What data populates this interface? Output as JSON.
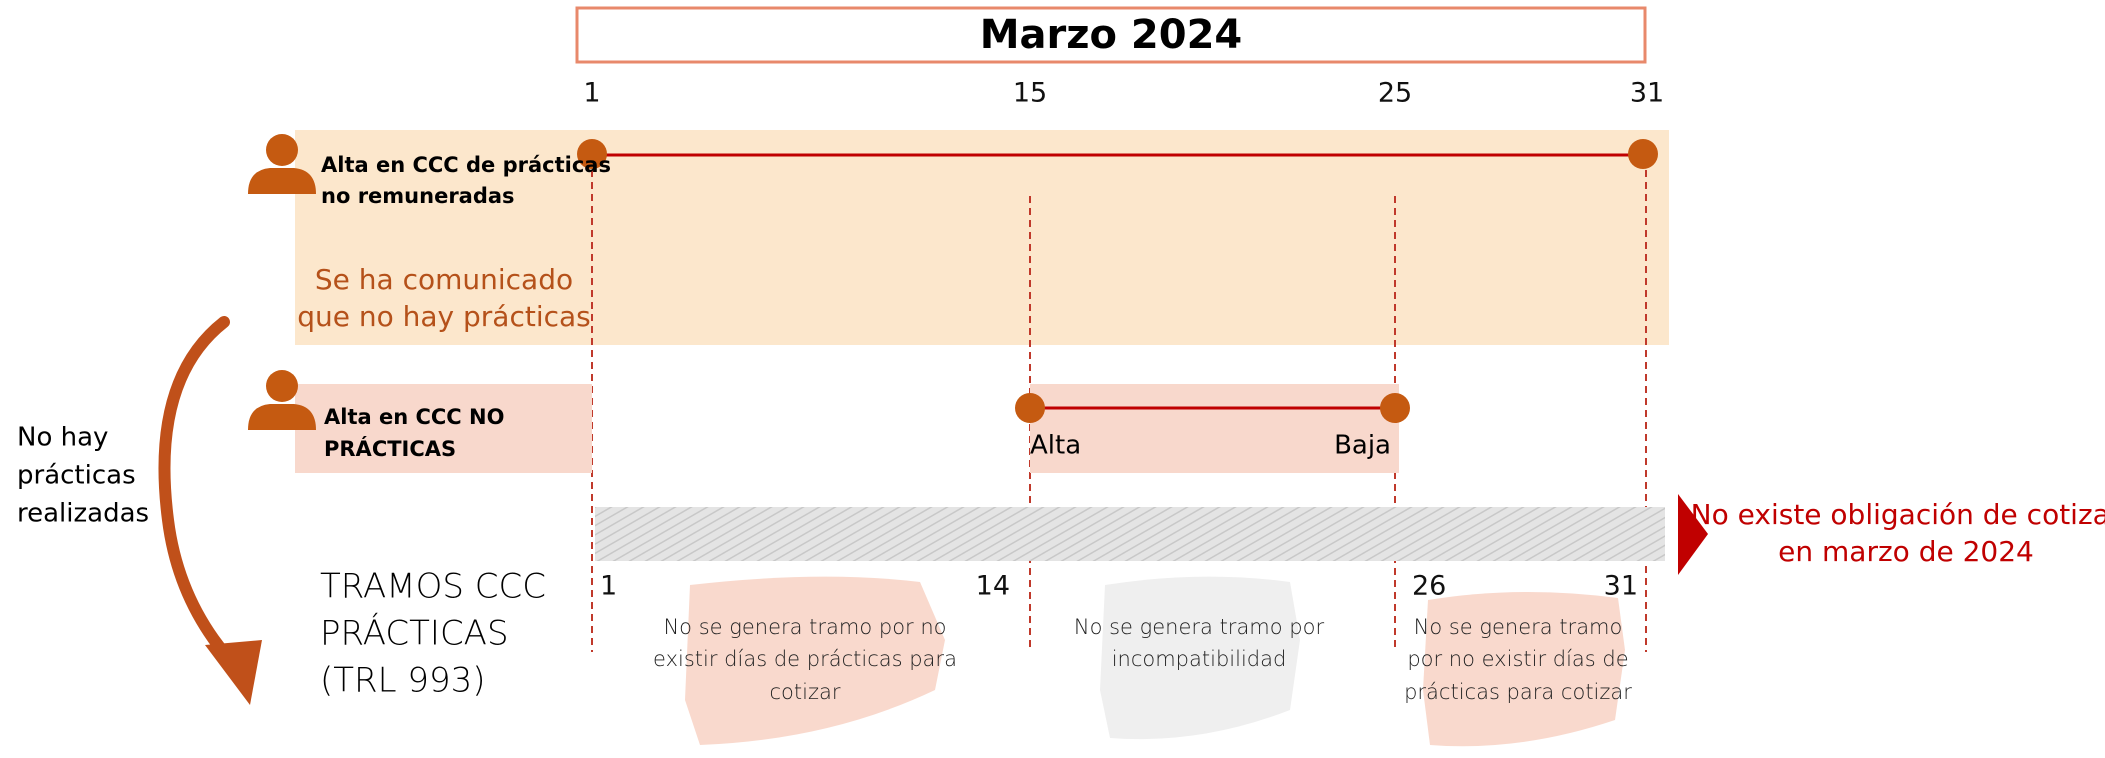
{
  "title": "Marzo 2024",
  "timeline_days": [
    "1",
    "15",
    "25",
    "31"
  ],
  "row_practicas": {
    "label": [
      "Alta en CCC de prácticas",
      "no remuneradas"
    ],
    "note": [
      "Se ha comunicado",
      "que no hay prácticas"
    ]
  },
  "row_no_practicas": {
    "label": [
      "Alta en CCC NO",
      "PRÁCTICAS"
    ],
    "start": "Alta",
    "end": "Baja"
  },
  "side_note": [
    "No hay",
    "prácticas",
    "realizadas"
  ],
  "tramos": {
    "label": [
      "TRAMOS CCC",
      "PRÁCTICAS",
      "(TRL 993)"
    ],
    "days": [
      "1",
      "14",
      "26",
      "31"
    ],
    "segments": [
      [
        "No se genera tramo por no",
        "existir días de prácticas para",
        "cotizar"
      ],
      [
        "No se genera tramo por",
        "incompatibilidad"
      ],
      [
        "No se genera tramo",
        "por no existir días de",
        "prácticas para cotizar"
      ]
    ]
  },
  "conclusion": [
    "No existe obligación de cotizar",
    "en marzo de 2024"
  ]
}
